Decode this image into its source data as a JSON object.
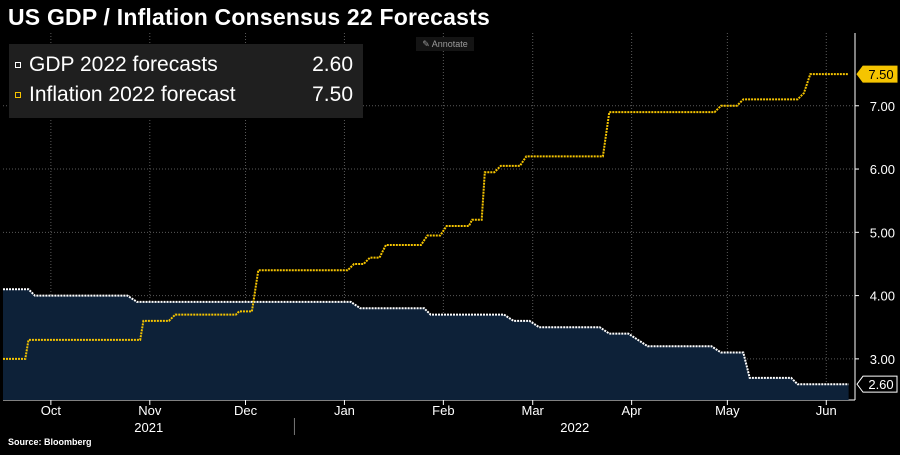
{
  "title": "US GDP / Inflation Consensus 22 Forecasts",
  "annotate_label": "Annotate",
  "legend": [
    {
      "name": "GDP 2022 forecasts",
      "value": "2.60"
    },
    {
      "name": "Inflation 2022 forecast",
      "value": "7.50"
    }
  ],
  "source": "Source: Bloomberg",
  "colors": {
    "gdp_line": "#ffffff",
    "gdp_fill": "#0d2138",
    "inflation_line": "#f5c400",
    "background": "#000000",
    "grid": "#5a5a5a"
  },
  "chart_data": {
    "type": "line",
    "title": "US GDP / Inflation Consensus 22 Forecasts",
    "x_range": [
      "2021-09-16",
      "2022-06-10"
    ],
    "ylim": [
      2.35,
      8.15
    ],
    "y_ticks": [
      "3.00",
      "4.00",
      "5.00",
      "6.00",
      "7.00"
    ],
    "month_ticks": [
      {
        "label": "Oct",
        "date": "2021-10-01"
      },
      {
        "label": "Nov",
        "date": "2021-11-01"
      },
      {
        "label": "Dec",
        "date": "2021-12-01"
      },
      {
        "label": "Jan",
        "date": "2022-01-01"
      },
      {
        "label": "Feb",
        "date": "2022-02-01"
      },
      {
        "label": "Mar",
        "date": "2022-03-01"
      },
      {
        "label": "Apr",
        "date": "2022-04-01"
      },
      {
        "label": "May",
        "date": "2022-05-01"
      },
      {
        "label": "Jun",
        "date": "2022-06-01"
      }
    ],
    "year_labels": [
      "2021",
      "2022"
    ],
    "grid": true,
    "legend_position": "top-left",
    "series": [
      {
        "name": "GDP 2022 forecasts",
        "color": "#ffffff",
        "last_value": "2.60",
        "points": [
          [
            "2021-09-16",
            4.1
          ],
          [
            "2021-09-24",
            4.1
          ],
          [
            "2021-09-26",
            4.0
          ],
          [
            "2021-10-25",
            4.0
          ],
          [
            "2021-10-28",
            3.9
          ],
          [
            "2022-01-03",
            3.9
          ],
          [
            "2022-01-06",
            3.8
          ],
          [
            "2022-01-26",
            3.8
          ],
          [
            "2022-01-28",
            3.7
          ],
          [
            "2022-02-20",
            3.7
          ],
          [
            "2022-02-23",
            3.6
          ],
          [
            "2022-02-28",
            3.6
          ],
          [
            "2022-03-03",
            3.5
          ],
          [
            "2022-03-22",
            3.5
          ],
          [
            "2022-03-25",
            3.4
          ],
          [
            "2022-03-31",
            3.4
          ],
          [
            "2022-04-03",
            3.3
          ],
          [
            "2022-04-06",
            3.2
          ],
          [
            "2022-04-26",
            3.2
          ],
          [
            "2022-04-29",
            3.1
          ],
          [
            "2022-05-06",
            3.1
          ],
          [
            "2022-05-08",
            2.7
          ],
          [
            "2022-05-21",
            2.7
          ],
          [
            "2022-05-23",
            2.6
          ],
          [
            "2022-06-08",
            2.6
          ]
        ]
      },
      {
        "name": "Inflation 2022 forecast",
        "color": "#f5c400",
        "last_value": "7.50",
        "points": [
          [
            "2021-09-16",
            3.0
          ],
          [
            "2021-09-23",
            3.0
          ],
          [
            "2021-09-24",
            3.3
          ],
          [
            "2021-10-29",
            3.3
          ],
          [
            "2021-10-30",
            3.6
          ],
          [
            "2021-11-07",
            3.6
          ],
          [
            "2021-11-09",
            3.7
          ],
          [
            "2021-11-28",
            3.7
          ],
          [
            "2021-11-29",
            3.75
          ],
          [
            "2021-12-03",
            3.75
          ],
          [
            "2021-12-05",
            4.4
          ],
          [
            "2022-01-02",
            4.4
          ],
          [
            "2022-01-04",
            4.5
          ],
          [
            "2022-01-07",
            4.5
          ],
          [
            "2022-01-09",
            4.6
          ],
          [
            "2022-01-12",
            4.6
          ],
          [
            "2022-01-14",
            4.8
          ],
          [
            "2022-01-25",
            4.8
          ],
          [
            "2022-01-27",
            4.95
          ],
          [
            "2022-01-31",
            4.95
          ],
          [
            "2022-02-02",
            5.1
          ],
          [
            "2022-02-09",
            5.1
          ],
          [
            "2022-02-10",
            5.2
          ],
          [
            "2022-02-13",
            5.2
          ],
          [
            "2022-02-14",
            5.95
          ],
          [
            "2022-02-17",
            5.95
          ],
          [
            "2022-02-19",
            6.05
          ],
          [
            "2022-02-25",
            6.05
          ],
          [
            "2022-02-27",
            6.2
          ],
          [
            "2022-03-23",
            6.2
          ],
          [
            "2022-03-25",
            6.9
          ],
          [
            "2022-04-27",
            6.9
          ],
          [
            "2022-04-29",
            7.0
          ],
          [
            "2022-05-04",
            7.0
          ],
          [
            "2022-05-06",
            7.1
          ],
          [
            "2022-05-23",
            7.1
          ],
          [
            "2022-05-25",
            7.2
          ],
          [
            "2022-05-27",
            7.5
          ],
          [
            "2022-06-08",
            7.5
          ]
        ]
      }
    ]
  }
}
